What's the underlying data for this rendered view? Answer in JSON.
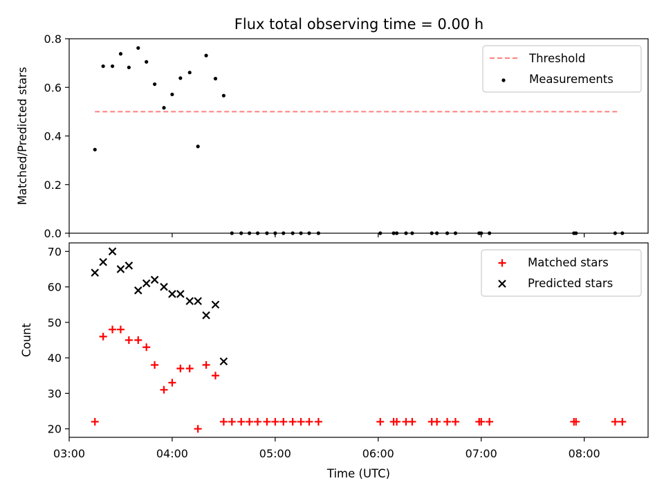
{
  "colors": {
    "threshold": "#ff7f7f",
    "measurement": "#000000",
    "matched": "#ff0000",
    "predicted": "#000000"
  },
  "chart_data": [
    {
      "type": "scatter",
      "title": "Flux total observing time = 0.00 h",
      "ylabel": "Matched/Predicted stars",
      "xlabel": "",
      "xlim": [
        3.0,
        8.62
      ],
      "ylim": [
        0.0,
        0.8
      ],
      "yticks": [
        0.0,
        0.2,
        0.4,
        0.6,
        0.8
      ],
      "ytick_labels": [
        "0.0",
        "0.2",
        "0.4",
        "0.6",
        "0.8"
      ],
      "legend_position": "top-right",
      "threshold": {
        "name": "Threshold",
        "y": 0.5,
        "x": [
          3.25,
          8.33
        ],
        "style": "dashed"
      },
      "series": [
        {
          "name": "Measurements",
          "x": [
            3.25,
            3.33,
            3.42,
            3.5,
            3.58,
            3.67,
            3.75,
            3.83,
            3.92,
            4.0,
            4.08,
            4.17,
            4.25,
            4.33,
            4.42,
            4.5,
            4.58,
            4.67,
            4.75,
            4.83,
            4.92,
            5.0,
            5.08,
            5.17,
            5.25,
            5.33,
            5.42,
            6.02,
            6.15,
            6.18,
            6.27,
            6.33,
            6.52,
            6.57,
            6.67,
            6.75,
            6.98,
            7.0,
            7.08,
            7.9,
            7.92,
            8.3,
            8.37
          ],
          "y": [
            0.344,
            0.687,
            0.687,
            0.738,
            0.682,
            0.762,
            0.705,
            0.613,
            0.516,
            0.571,
            0.638,
            0.661,
            0.357,
            0.731,
            0.636,
            0.566,
            0,
            0,
            0,
            0,
            0,
            0,
            0,
            0,
            0,
            0,
            0,
            0,
            0,
            0,
            0,
            0,
            0,
            0,
            0,
            0,
            0,
            0,
            0,
            0,
            0,
            0,
            0
          ]
        }
      ]
    },
    {
      "type": "scatter",
      "title": "",
      "ylabel": "Count",
      "xlabel": "Time (UTC)",
      "xlim": [
        3.0,
        8.62
      ],
      "ylim": [
        17.6,
        72.4
      ],
      "yticks": [
        20,
        30,
        40,
        50,
        60,
        70
      ],
      "xticks": [
        3,
        4,
        5,
        6,
        7,
        8
      ],
      "xtick_labels": [
        "03:00",
        "04:00",
        "05:00",
        "06:00",
        "07:00",
        "08:00"
      ],
      "legend_position": "top-right",
      "series": [
        {
          "name": "Matched stars",
          "marker": "plus",
          "x": [
            3.25,
            3.33,
            3.42,
            3.5,
            3.58,
            3.67,
            3.75,
            3.83,
            3.92,
            4.0,
            4.08,
            4.17,
            4.25,
            4.33,
            4.42,
            4.5,
            4.58,
            4.67,
            4.75,
            4.83,
            4.92,
            5.0,
            5.08,
            5.17,
            5.25,
            5.33,
            5.42,
            6.02,
            6.15,
            6.18,
            6.27,
            6.33,
            6.52,
            6.57,
            6.67,
            6.75,
            6.98,
            7.0,
            7.08,
            7.9,
            7.92,
            8.3,
            8.37
          ],
          "y": [
            22,
            46,
            48,
            48,
            45,
            45,
            43,
            38,
            31,
            33,
            37,
            37,
            20,
            38,
            35,
            22,
            22,
            22,
            22,
            22,
            22,
            22,
            22,
            22,
            22,
            22,
            22,
            22,
            22,
            22,
            22,
            22,
            22,
            22,
            22,
            22,
            22,
            22,
            22,
            22,
            22,
            22,
            22
          ]
        },
        {
          "name": "Predicted stars",
          "marker": "x",
          "x": [
            3.25,
            3.33,
            3.42,
            3.5,
            3.58,
            3.67,
            3.75,
            3.83,
            3.92,
            4.0,
            4.08,
            4.17,
            4.25,
            4.33,
            4.42,
            4.5
          ],
          "y": [
            64,
            67,
            70,
            65,
            66,
            59,
            61,
            62,
            60,
            58,
            58,
            56,
            56,
            52,
            55,
            39
          ]
        }
      ]
    }
  ]
}
